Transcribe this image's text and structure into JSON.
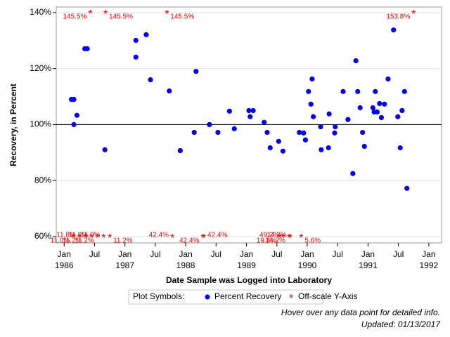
{
  "chart_data": {
    "type": "scatter",
    "ylabel": "Recovery, in Percent",
    "xlabel": "Date Sample was Logged into Laboratory",
    "legend_title": "Plot Symbols:",
    "footnotes": [
      "Hover over any data point for detailed info.",
      "Updated: 01/13/2017"
    ],
    "xlim": [
      1985.87,
      1992.21
    ],
    "ylim": [
      57.7,
      142
    ],
    "refline": 100,
    "grid": true,
    "yticks": [
      {
        "value": 60,
        "label": "60%"
      },
      {
        "value": 80,
        "label": "80%"
      },
      {
        "value": 100,
        "label": "100%"
      },
      {
        "value": 120,
        "label": "120%"
      },
      {
        "value": 140,
        "label": "140%"
      }
    ],
    "xticks": [
      {
        "value": 1986,
        "label": "Jan 1986"
      },
      {
        "value": 1986.5,
        "label": "Jul"
      },
      {
        "value": 1987,
        "label": "Jan 1987"
      },
      {
        "value": 1987.5,
        "label": "Jul"
      },
      {
        "value": 1988,
        "label": "Jan 1988"
      },
      {
        "value": 1988.5,
        "label": "Jul"
      },
      {
        "value": 1989,
        "label": "Jan 1989"
      },
      {
        "value": 1989.5,
        "label": "Jul"
      },
      {
        "value": 1990,
        "label": "Jan 1990"
      },
      {
        "value": 1990.5,
        "label": "Jul"
      },
      {
        "value": 1991,
        "label": "Jan 1991"
      },
      {
        "value": 1991.5,
        "label": "Jul"
      },
      {
        "value": 1992,
        "label": "Jan 1992"
      }
    ],
    "series": [
      {
        "name": "Percent Recovery",
        "color": "#0000ff",
        "marker": "dot",
        "x": [
          1986.12,
          1986.16,
          1986.16,
          1986.21,
          1986.34,
          1986.38,
          1986.67,
          1987.18,
          1987.18,
          1987.35,
          1987.42,
          1987.73,
          1987.91,
          1988.14,
          1988.17,
          1988.39,
          1988.53,
          1988.72,
          1988.8,
          1989.04,
          1989.06,
          1989.11,
          1989.29,
          1989.34,
          1989.39,
          1989.53,
          1989.6,
          1989.87,
          1989.94,
          1989.97,
          1990.02,
          1990.06,
          1990.08,
          1990.1,
          1990.22,
          1990.23,
          1990.35,
          1990.36,
          1990.45,
          1990.46,
          1990.59,
          1990.67,
          1990.75,
          1990.8,
          1990.83,
          1990.87,
          1990.91,
          1990.94,
          1991.08,
          1991.1,
          1991.12,
          1991.15,
          1991.19,
          1991.22,
          1991.27,
          1991.33,
          1991.42,
          1991.49,
          1991.53,
          1991.56,
          1991.6,
          1991.64
        ],
        "values": [
          109,
          109,
          100,
          103.3,
          127.1,
          127.1,
          91,
          130.1,
          124.1,
          132.1,
          116,
          112,
          90.7,
          97.2,
          119,
          100,
          97.2,
          104.8,
          98.5,
          105,
          102.8,
          105,
          100.8,
          97.2,
          91.7,
          94,
          90.5,
          97.2,
          97,
          94.5,
          111.8,
          107.3,
          116.3,
          102.8,
          99.2,
          91,
          91.7,
          103.8,
          97,
          99.2,
          111.8,
          101.8,
          82.5,
          122.8,
          111.8,
          106,
          97.2,
          92.2,
          106,
          104.5,
          111.8,
          104.5,
          107.5,
          102.5,
          107.3,
          116.3,
          133.8,
          102.8,
          91.7,
          105,
          111.8,
          77.2
        ]
      },
      {
        "name": "Off-scale Y-Axis",
        "color": "#ff0000",
        "marker": "star",
        "x": [
          1986.43,
          1986.68,
          1987.69,
          1991.75,
          1986.15,
          1986.25,
          1986.35,
          1986.45,
          1986.55,
          1986.65,
          1986.75,
          1987.78,
          1988.28,
          1988.3,
          1989.55,
          1989.6,
          1989.7,
          1989.72,
          1989.9
        ],
        "values": [
          145.5,
          145.5,
          145.5,
          153.8,
          11,
          11.8,
          11.2,
          11.8,
          11.2,
          11,
          11.2,
          42.4,
          42.4,
          42.4,
          19.8,
          49.2,
          14.2,
          14.2,
          5.6
        ],
        "value_labels": [
          "145.5%",
          "145.5%",
          "145.5%",
          "153.8%",
          "11.0%",
          "11.8%",
          "11.2%",
          "11.8%",
          "11.2%",
          "11.0%",
          "11.2%",
          "42.4%",
          "42.4%",
          "42.4%",
          "19.8%",
          "49.2%",
          "14.2%",
          "14.2%",
          "5.6%"
        ]
      }
    ]
  }
}
